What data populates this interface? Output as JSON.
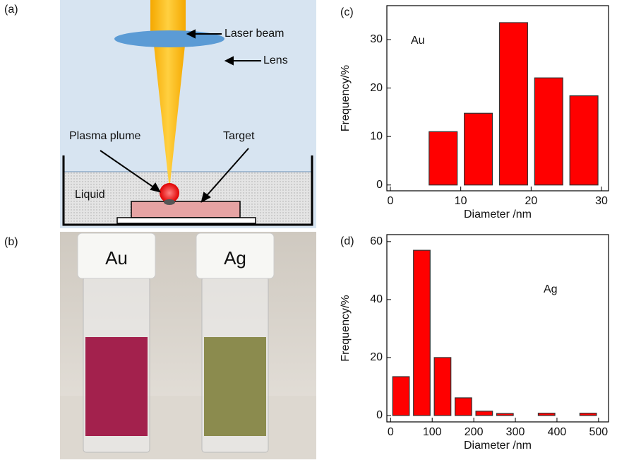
{
  "schematic": {
    "panel_label": "(a)",
    "laser_beam": "Laser beam",
    "lens": "Lens",
    "plasma_plume": "Plasma plume",
    "target": "Target",
    "liquid": "Liquid"
  },
  "photo": {
    "panel_label": "(b)",
    "left_cap": "Au",
    "right_cap": "Ag"
  },
  "chart_data": [
    {
      "type": "histogram",
      "panel_label": "(c)",
      "annotation": "Au",
      "xlabel": "Diameter /nm",
      "ylabel": "Frequency/%",
      "bins": [
        0,
        5,
        10,
        15,
        20,
        25,
        30
      ],
      "values": [
        0,
        11,
        14.8,
        33.5,
        22.1,
        18.4
      ],
      "color": "#ff0000",
      "xlim": [
        -0.5,
        31
      ],
      "ylim": [
        -1.2,
        37
      ],
      "xticks": [
        0,
        10,
        20,
        30
      ],
      "yticks": [
        0,
        10,
        20,
        30
      ]
    },
    {
      "type": "histogram",
      "panel_label": "(d)",
      "annotation": "Ag",
      "xlabel": "Diameter /nm",
      "ylabel": "Frequency/%",
      "bins": [
        0,
        50,
        100,
        150,
        200,
        250,
        300,
        350,
        400,
        450,
        500
      ],
      "values": [
        13.4,
        57,
        20,
        6.1,
        1.5,
        0.7,
        0,
        0.8,
        0,
        0.8
      ],
      "color": "#ff0000",
      "xlim": [
        -9,
        524
      ],
      "ylim": [
        -2.2,
        62.4
      ],
      "xticks": [
        0,
        100,
        200,
        300,
        400,
        500
      ],
      "yticks": [
        0,
        20,
        40,
        60
      ]
    }
  ]
}
